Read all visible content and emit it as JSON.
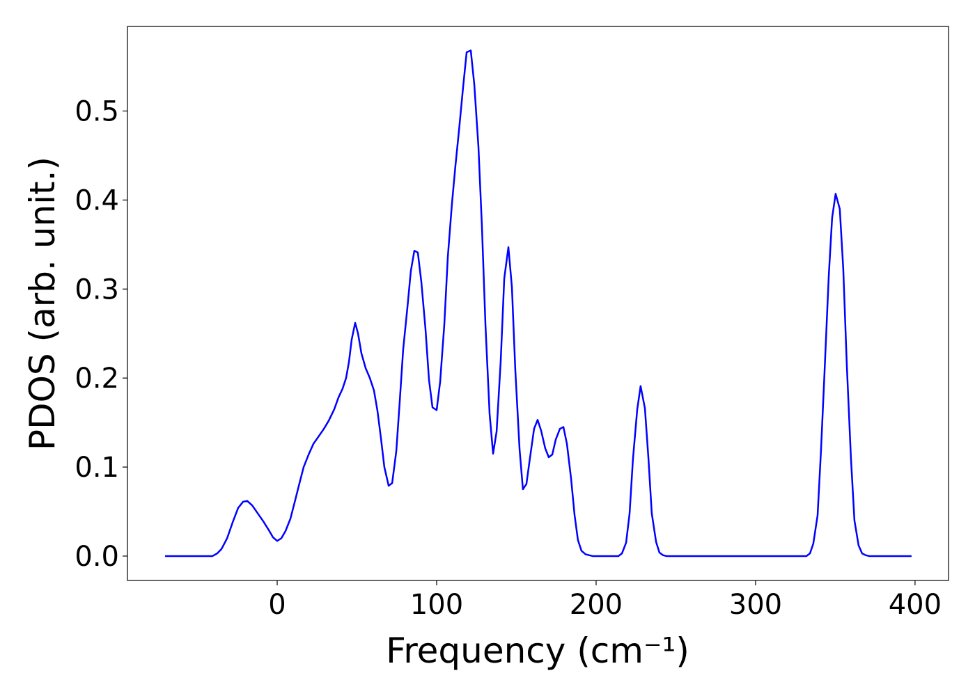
{
  "chart_data": {
    "type": "line",
    "xlabel": "Frequency (cm⁻¹)",
    "ylabel": "PDOS (arb. unit.)",
    "x": [
      -70.3,
      -40.6,
      -37.6,
      -34.9,
      -31.4,
      -27.9,
      -24.5,
      -21.4,
      -18.8,
      -15.7,
      -12.2,
      -8.7,
      -5.2,
      -2.6,
      0,
      2.6,
      5.2,
      8.3,
      10.9,
      14.0,
      16.6,
      19.7,
      22.7,
      26.2,
      29.3,
      32.3,
      35.8,
      38.4,
      41.0,
      43.2,
      45.0,
      46.7,
      48.9,
      50.7,
      52.8,
      55.5,
      58.1,
      60.7,
      62.9,
      65.1,
      67.2,
      69.9,
      72.1,
      74.7,
      76.9,
      79.0,
      81.7,
      83.8,
      86.0,
      88.2,
      90.4,
      93.0,
      95.2,
      97.4,
      100.0,
      102.2,
      104.8,
      107.0,
      109.6,
      111.8,
      114.0,
      116.6,
      118.8,
      121.4,
      123.6,
      126.2,
      128.4,
      130.6,
      133.2,
      135.4,
      137.6,
      140.2,
      142.4,
      145.0,
      147.2,
      149.3,
      152.0,
      154.1,
      156.3,
      158.5,
      161.1,
      163.3,
      165.5,
      168.1,
      170.3,
      172.5,
      174.7,
      177.3,
      179.5,
      181.7,
      184.3,
      186.5,
      188.6,
      190.8,
      193.4,
      195.6,
      197.8,
      214.0,
      216.2,
      218.8,
      221.0,
      223.1,
      225.8,
      227.9,
      230.6,
      232.8,
      234.9,
      237.6,
      239.7,
      241.9,
      244.1,
      331.9,
      334.1,
      336.2,
      338.9,
      341.0,
      343.2,
      345.9,
      348.0,
      350.2,
      352.8,
      355.0,
      357.2,
      359.8,
      362.0,
      364.6,
      366.8,
      369.0,
      371.2,
      397.8
    ],
    "series": [
      {
        "name": "PDOS",
        "color": "#0000ff",
        "values": [
          0,
          0,
          0.003,
          0.008,
          0.02,
          0.038,
          0.054,
          0.061,
          0.062,
          0.057,
          0.048,
          0.039,
          0.029,
          0.021,
          0.017,
          0.02,
          0.028,
          0.042,
          0.06,
          0.082,
          0.1,
          0.114,
          0.126,
          0.135,
          0.143,
          0.152,
          0.165,
          0.178,
          0.188,
          0.2,
          0.218,
          0.243,
          0.262,
          0.25,
          0.228,
          0.211,
          0.2,
          0.186,
          0.163,
          0.132,
          0.1,
          0.079,
          0.082,
          0.118,
          0.175,
          0.232,
          0.28,
          0.32,
          0.343,
          0.341,
          0.308,
          0.255,
          0.198,
          0.167,
          0.164,
          0.196,
          0.26,
          0.336,
          0.396,
          0.439,
          0.478,
          0.527,
          0.566,
          0.568,
          0.53,
          0.46,
          0.37,
          0.26,
          0.16,
          0.115,
          0.14,
          0.22,
          0.312,
          0.347,
          0.302,
          0.21,
          0.12,
          0.075,
          0.081,
          0.11,
          0.143,
          0.153,
          0.141,
          0.121,
          0.111,
          0.114,
          0.131,
          0.143,
          0.145,
          0.126,
          0.087,
          0.046,
          0.018,
          0.006,
          0.002,
          0.001,
          0,
          0,
          0.003,
          0.015,
          0.048,
          0.109,
          0.165,
          0.191,
          0.166,
          0.11,
          0.048,
          0.016,
          0.004,
          0.001,
          0,
          0,
          0.003,
          0.014,
          0.046,
          0.118,
          0.205,
          0.315,
          0.38,
          0.407,
          0.39,
          0.322,
          0.215,
          0.11,
          0.04,
          0.012,
          0.003,
          0.001,
          0,
          0
        ]
      }
    ],
    "xlim": [
      -93.9,
      421
    ],
    "ylim": [
      -0.0274,
      0.595
    ],
    "xticks": [
      0,
      100,
      200,
      300,
      400
    ],
    "yticks": [
      {
        "value": 0,
        "label": "0.0"
      },
      0.1,
      0.2,
      0.3,
      0.4,
      0.5
    ]
  }
}
